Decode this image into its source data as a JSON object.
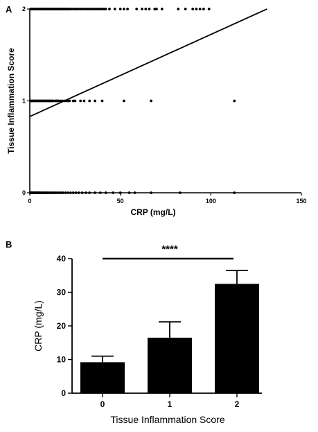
{
  "chart_data": [
    {
      "panel": "A",
      "type": "scatter",
      "xlabel": "CRP (mg/L)",
      "ylabel": "Tissue  Inflammation Score",
      "xlim": [
        0,
        150
      ],
      "ylim": [
        0,
        2
      ],
      "x_ticks": [
        "0",
        "50",
        "100",
        "150"
      ],
      "y_ticks": [
        "0",
        "1",
        "2"
      ],
      "regression_line": {
        "x": [
          0,
          131
        ],
        "y": [
          0.83,
          2.0
        ]
      },
      "series": [
        {
          "y": 0,
          "x": [
            0.3,
            0.6,
            0.9,
            1.2,
            1.5,
            1.8,
            2.1,
            2.4,
            2.8,
            3.1,
            3.5,
            3.9,
            4.3,
            4.7,
            5.1,
            5.5,
            6,
            6.5,
            7,
            7.5,
            8,
            8.6,
            9.2,
            9.8,
            10.5,
            11.2,
            12,
            12.8,
            13.6,
            14.5,
            15.5,
            16.5,
            17.5,
            18.5,
            19.8,
            21,
            22.5,
            24,
            25.5,
            27,
            29,
            31,
            33,
            36,
            39,
            42,
            46,
            50,
            55,
            58,
            67,
            83,
            113
          ]
        },
        {
          "y": 1,
          "x": [
            0.5,
            1,
            1.5,
            2,
            2.5,
            3,
            3.5,
            4,
            4.5,
            5,
            5.5,
            6,
            6.5,
            7,
            7.5,
            8,
            8.5,
            9,
            9.5,
            10,
            10.5,
            11,
            11.5,
            12,
            12.5,
            13,
            14,
            14.5,
            15,
            15.5,
            16,
            17,
            18,
            19,
            20,
            21,
            22,
            24,
            25,
            28,
            30,
            33,
            36,
            40,
            52,
            67,
            113
          ]
        },
        {
          "y": 2,
          "x": [
            0.5,
            1,
            1.5,
            2,
            2.5,
            3,
            3.5,
            4,
            4.5,
            5,
            5.5,
            6,
            6.5,
            7,
            7.5,
            8,
            8.5,
            9,
            9.5,
            10,
            10.5,
            11,
            11.5,
            12,
            12.5,
            13,
            13.5,
            14,
            14.5,
            15,
            15.5,
            16,
            16.5,
            17,
            17.5,
            18,
            18.5,
            19,
            19.5,
            20,
            20.5,
            21,
            21.5,
            22,
            23,
            24,
            25,
            26,
            27,
            28,
            29,
            30,
            31,
            32,
            33,
            34,
            35,
            36,
            37,
            38,
            39,
            40,
            41,
            42,
            44,
            47,
            50,
            52,
            54,
            59,
            62,
            64,
            66,
            69,
            70,
            73,
            82,
            86,
            90,
            92,
            94,
            96,
            99
          ]
        }
      ]
    },
    {
      "panel": "B",
      "type": "bar",
      "xlabel": "Tissue Inflammation Score",
      "ylabel": "CRP (mg/L)",
      "categories": [
        "0",
        "1",
        "2"
      ],
      "values": [
        9.2,
        16.5,
        32.5
      ],
      "error_upper": [
        11.0,
        21.2,
        36.5
      ],
      "ylim": [
        0,
        40
      ],
      "y_ticks": [
        "0",
        "10",
        "20",
        "30",
        "40"
      ],
      "significance": {
        "label": "****",
        "from": "0",
        "to": "2"
      }
    }
  ],
  "panels": {
    "a_label": "A",
    "b_label": "B"
  }
}
